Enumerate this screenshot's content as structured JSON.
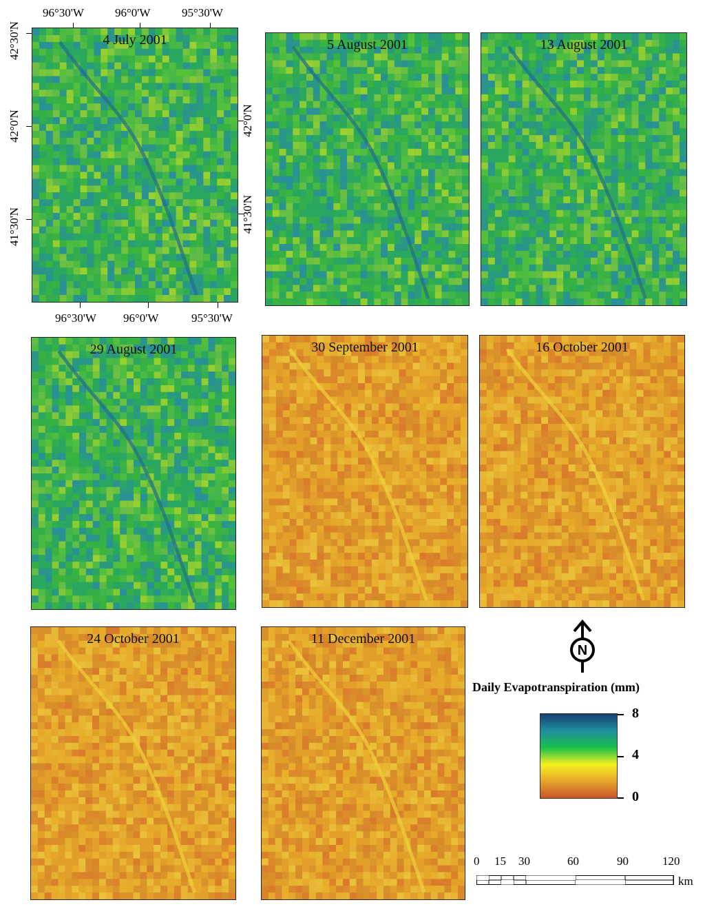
{
  "panels": [
    {
      "title": "4 July 2001",
      "style": "green"
    },
    {
      "title": "5 August 2001",
      "style": "green"
    },
    {
      "title": "13 August 2001",
      "style": "green"
    },
    {
      "title": "29 August 2001",
      "style": "green"
    },
    {
      "title": "30 September 2001",
      "style": "orange"
    },
    {
      "title": "16 October 2001",
      "style": "orange"
    },
    {
      "title": "24 October 2001",
      "style": "orange"
    },
    {
      "title": "11 December 2001",
      "style": "orange"
    }
  ],
  "axes": {
    "top_lon": [
      "96°30'W",
      "96°0'W",
      "95°30'W"
    ],
    "bottom_lon": [
      "96°30'W",
      "96°0'W",
      "95°30'W"
    ],
    "left_lat": [
      "42°30'N",
      "42°0'N",
      "41°30'N"
    ],
    "right_lat": [
      "42°0'N",
      "41°30'N"
    ]
  },
  "legend": {
    "title": "Daily Evapotranspiration (mm)",
    "max_label": "8",
    "mid_label": "4",
    "min_label": "0",
    "colors": [
      "#17406e",
      "#1f8fa0",
      "#19c04a",
      "#f4f020",
      "#e6a52a",
      "#c8552c"
    ]
  },
  "north_arrow": {
    "letter": "N"
  },
  "scale_bar": {
    "labels": [
      "0",
      "15",
      "30",
      "60",
      "90",
      "120"
    ],
    "unit": "km"
  }
}
